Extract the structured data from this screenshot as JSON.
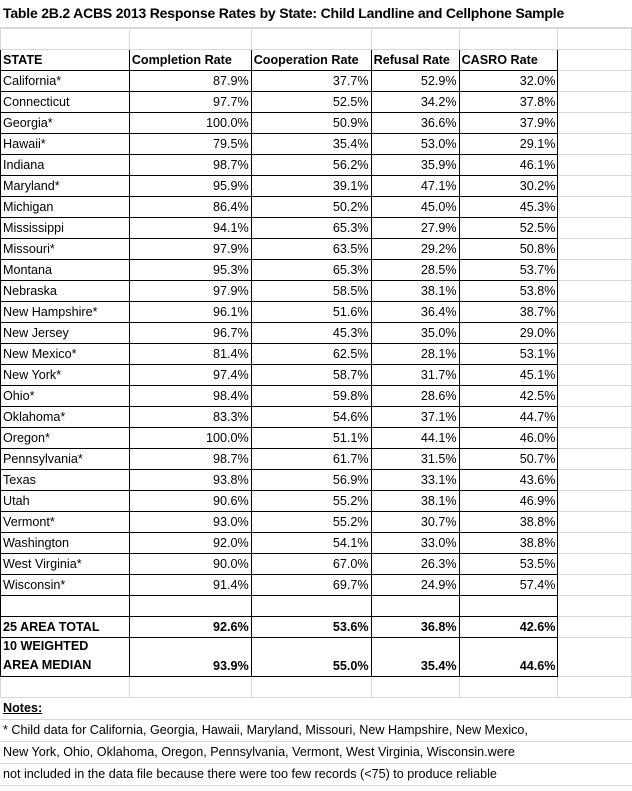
{
  "title": "Table 2B.2 ACBS 2013 Response Rates by State: Child  Landline and Cellphone Sample",
  "columns": [
    "STATE",
    "Completion Rate",
    "Cooperation Rate",
    "Refusal Rate",
    "CASRO Rate"
  ],
  "rows": [
    [
      "California*",
      "87.9%",
      "37.7%",
      "52.9%",
      "32.0%"
    ],
    [
      "Connecticut",
      "97.7%",
      "52.5%",
      "34.2%",
      "37.8%"
    ],
    [
      "Georgia*",
      "100.0%",
      "50.9%",
      "36.6%",
      "37.9%"
    ],
    [
      "Hawaii*",
      "79.5%",
      "35.4%",
      "53.0%",
      "29.1%"
    ],
    [
      "Indiana",
      "98.7%",
      "56.2%",
      "35.9%",
      "46.1%"
    ],
    [
      "Maryland*",
      "95.9%",
      "39.1%",
      "47.1%",
      "30.2%"
    ],
    [
      "Michigan",
      "86.4%",
      "50.2%",
      "45.0%",
      "45.3%"
    ],
    [
      "Mississippi",
      "94.1%",
      "65.3%",
      "27.9%",
      "52.5%"
    ],
    [
      "Missouri*",
      "97.9%",
      "63.5%",
      "29.2%",
      "50.8%"
    ],
    [
      "Montana",
      "95.3%",
      "65.3%",
      "28.5%",
      "53.7%"
    ],
    [
      "Nebraska",
      "97.9%",
      "58.5%",
      "38.1%",
      "53.8%"
    ],
    [
      "New Hampshire*",
      "96.1%",
      "51.6%",
      "36.4%",
      "38.7%"
    ],
    [
      "New Jersey",
      "96.7%",
      "45.3%",
      "35.0%",
      "29.0%"
    ],
    [
      "New Mexico*",
      "81.4%",
      "62.5%",
      "28.1%",
      "53.1%"
    ],
    [
      "New York*",
      "97.4%",
      "58.7%",
      "31.7%",
      "45.1%"
    ],
    [
      "Ohio*",
      "98.4%",
      "59.8%",
      "28.6%",
      "42.5%"
    ],
    [
      "Oklahoma*",
      "83.3%",
      "54.6%",
      "37.1%",
      "44.7%"
    ],
    [
      "Oregon*",
      "100.0%",
      "51.1%",
      "44.1%",
      "46.0%"
    ],
    [
      "Pennsylvania*",
      "98.7%",
      "61.7%",
      "31.5%",
      "50.7%"
    ],
    [
      "Texas",
      "93.8%",
      "56.9%",
      "33.1%",
      "43.6%"
    ],
    [
      "Utah",
      "90.6%",
      "55.2%",
      "38.1%",
      "46.9%"
    ],
    [
      "Vermont*",
      "93.0%",
      "55.2%",
      "30.7%",
      "38.8%"
    ],
    [
      "Washington",
      "92.0%",
      "54.1%",
      "33.0%",
      "38.8%"
    ],
    [
      "West Virginia*",
      "90.0%",
      "67.0%",
      "26.3%",
      "53.5%"
    ],
    [
      "Wisconsin*",
      "91.4%",
      "69.7%",
      "24.9%",
      "57.4%"
    ]
  ],
  "total": [
    "25 AREA TOTAL",
    "92.6%",
    "53.6%",
    "36.8%",
    "42.6%"
  ],
  "median": {
    "label_line1": "10 WEIGHTED",
    "label_line2": "AREA MEDIAN",
    "values": [
      "93.9%",
      "55.0%",
      "35.4%",
      "44.6%"
    ]
  },
  "notes": {
    "heading": "Notes:",
    "lines": [
      " * Child data for California, Georgia, Hawaii,  Maryland, Missouri, New Hampshire, New Mexico,",
      "New York, Ohio, Oklahoma, Oregon, Pennsylvania, Vermont, West Virginia, Wisconsin.were",
      "not included in the data file because there were too few records (<75) to produce reliable"
    ]
  }
}
